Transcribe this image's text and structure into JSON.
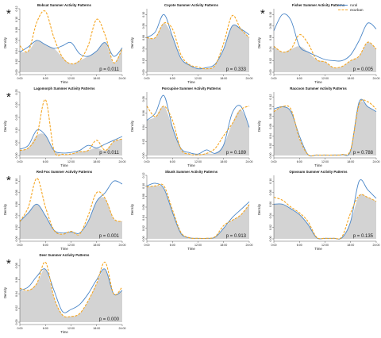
{
  "colors": {
    "rural": "#4a86c8",
    "exurban": "#f5a623",
    "fill": "#d3d3d3",
    "axis": "#333333"
  },
  "legend": {
    "items": [
      {
        "label": "rural"
      },
      {
        "label": "exurban"
      }
    ]
  },
  "chart_data": [
    {
      "type": "area",
      "title": "Bobcat Summer Activity Patterns",
      "xlabel": "Time",
      "ylabel": "Density",
      "xlim": [
        0,
        24
      ],
      "xticks": [
        "0:00",
        "6:00",
        "12:00",
        "18:00",
        "24:00"
      ],
      "yticks": [
        0,
        0.02,
        0.04,
        0.06,
        0.08,
        0.1,
        0.12
      ],
      "ylim": [
        0,
        0.12
      ],
      "p_value": "p = 0.011",
      "significant": true,
      "x": [
        0,
        2,
        4,
        6,
        8,
        10,
        12,
        14,
        16,
        18,
        20,
        22,
        24
      ],
      "series": [
        {
          "name": "rural",
          "values": [
            0.038,
            0.048,
            0.06,
            0.052,
            0.045,
            0.05,
            0.056,
            0.035,
            0.03,
            0.04,
            0.056,
            0.03,
            0.046
          ]
        },
        {
          "name": "exurban",
          "values": [
            0.05,
            0.04,
            0.095,
            0.115,
            0.065,
            0.028,
            0.016,
            0.022,
            0.05,
            0.1,
            0.07,
            0.018,
            0.045
          ]
        }
      ]
    },
    {
      "type": "area",
      "title": "Coyote Summer Activity Patterns",
      "xlabel": "Time",
      "ylabel": "Density",
      "xlim": [
        0,
        24
      ],
      "xticks": [
        "0:00",
        "6:00",
        "12:00",
        "18:00",
        "24:00"
      ],
      "yticks": [
        0,
        0.02,
        0.04,
        0.06,
        0.08,
        0.1
      ],
      "ylim": [
        0,
        0.11
      ],
      "p_value": "p = 0.333",
      "significant": false,
      "x": [
        0,
        2,
        4,
        6,
        8,
        10,
        12,
        14,
        16,
        18,
        20,
        22,
        24
      ],
      "series": [
        {
          "name": "rural",
          "values": [
            0.06,
            0.07,
            0.1,
            0.062,
            0.024,
            0.012,
            0.006,
            0.008,
            0.014,
            0.04,
            0.08,
            0.075,
            0.065
          ]
        },
        {
          "name": "exurban",
          "values": [
            0.06,
            0.06,
            0.085,
            0.075,
            0.03,
            0.013,
            0.009,
            0.006,
            0.012,
            0.05,
            0.098,
            0.075,
            0.06
          ]
        }
      ]
    },
    {
      "type": "area",
      "title": "Fisher Summer Activity Patterns",
      "xlabel": "Time",
      "ylabel": "Density",
      "xlim": [
        0,
        24
      ],
      "xticks": [
        "0:00",
        "6:00",
        "12:00",
        "18:00",
        "24:00"
      ],
      "yticks": [
        0,
        0.02,
        0.04,
        0.06,
        0.08,
        0.1
      ],
      "ylim": [
        0,
        0.11
      ],
      "p_value": "p = 0.005",
      "significant": true,
      "x": [
        0,
        2,
        4,
        6,
        8,
        10,
        12,
        14,
        16,
        18,
        20,
        22,
        24
      ],
      "series": [
        {
          "name": "rural",
          "values": [
            0.072,
            0.1,
            0.09,
            0.045,
            0.035,
            0.028,
            0.022,
            0.02,
            0.02,
            0.03,
            0.055,
            0.085,
            0.075
          ]
        },
        {
          "name": "exurban",
          "values": [
            0.045,
            0.035,
            0.04,
            0.065,
            0.05,
            0.022,
            0.018,
            0.008,
            0.01,
            0.02,
            0.028,
            0.052,
            0.04
          ]
        }
      ]
    },
    {
      "type": "area",
      "title": "Lagomorph Summer Activity Patterns",
      "xlabel": "Time",
      "ylabel": "Density",
      "xlim": [
        0,
        24
      ],
      "xticks": [
        "0:00",
        "6:00",
        "12:00",
        "18:00",
        "24:00"
      ],
      "yticks": [
        0,
        0.05,
        0.1,
        0.15,
        0.2,
        0.25
      ],
      "ylim": [
        0,
        0.25
      ],
      "p_value": "p = 0.011",
      "significant": true,
      "x": [
        0,
        2,
        4,
        6,
        8,
        10,
        12,
        14,
        16,
        18,
        20,
        22,
        24
      ],
      "series": [
        {
          "name": "rural",
          "values": [
            0.025,
            0.04,
            0.1,
            0.08,
            0.02,
            0.01,
            0.012,
            0.02,
            0.04,
            0.03,
            0.045,
            0.06,
            0.075
          ]
        },
        {
          "name": "exurban",
          "values": [
            0.02,
            0.03,
            0.08,
            0.22,
            0.02,
            0.005,
            0.006,
            0.015,
            0.02,
            0.06,
            0.02,
            0.055,
            0.065
          ]
        }
      ]
    },
    {
      "type": "area",
      "title": "Porcupine Summer Activity Patterns",
      "xlabel": "Time",
      "ylabel": "Density",
      "xlim": [
        0,
        24
      ],
      "xticks": [
        "0:00",
        "6:00",
        "12:00",
        "18:00",
        "24:00"
      ],
      "yticks": [
        0,
        0.02,
        0.04,
        0.06,
        0.08
      ],
      "ylim": [
        0,
        0.09
      ],
      "p_value": "p = 0.189",
      "significant": false,
      "x": [
        0,
        2,
        4,
        6,
        8,
        10,
        12,
        14,
        16,
        18,
        20,
        22,
        24
      ],
      "series": [
        {
          "name": "rural",
          "values": [
            0.05,
            0.06,
            0.085,
            0.04,
            0.01,
            0.004,
            0.002,
            0.008,
            0.003,
            0.015,
            0.06,
            0.07,
            0.04
          ]
        },
        {
          "name": "exurban",
          "values": [
            0.07,
            0.055,
            0.07,
            0.05,
            0.009,
            0.002,
            0.001,
            0.003,
            0.01,
            0.028,
            0.045,
            0.065,
            0.07
          ]
        }
      ]
    },
    {
      "type": "area",
      "title": "Raccoon Summer Activity Patterns",
      "xlabel": "Time",
      "ylabel": "Density",
      "xlim": [
        0,
        24
      ],
      "xticks": [
        "0:00",
        "6:00",
        "12:00",
        "18:00",
        "24:00"
      ],
      "yticks": [
        0,
        0.02,
        0.04,
        0.06,
        0.08,
        0.1,
        0.12
      ],
      "ylim": [
        0,
        0.13
      ],
      "p_value": "p = 0.788",
      "significant": false,
      "x": [
        0,
        2,
        4,
        6,
        8,
        10,
        12,
        14,
        16,
        18,
        20,
        22,
        24
      ],
      "series": [
        {
          "name": "rural",
          "values": [
            0.095,
            0.1,
            0.09,
            0.04,
            0.002,
            0.001,
            0.001,
            0.001,
            0.002,
            0.01,
            0.11,
            0.1,
            0.09
          ]
        },
        {
          "name": "exurban",
          "values": [
            0.09,
            0.1,
            0.095,
            0.035,
            0.002,
            0.001,
            0.001,
            0.001,
            0.002,
            0.012,
            0.105,
            0.11,
            0.095
          ]
        }
      ]
    },
    {
      "type": "area",
      "title": "Red Fox Summer Activity Patterns",
      "xlabel": "Time",
      "ylabel": "Density",
      "xlim": [
        0,
        24
      ],
      "xticks": [
        "0:00",
        "6:00",
        "12:00",
        "18:00",
        "24:00"
      ],
      "yticks": [
        0,
        0.02,
        0.04,
        0.06,
        0.08,
        0.1
      ],
      "ylim": [
        0,
        0.11
      ],
      "p_value": "p = 0.001",
      "significant": true,
      "x": [
        0,
        2,
        4,
        6,
        8,
        10,
        12,
        14,
        16,
        18,
        20,
        22,
        24
      ],
      "series": [
        {
          "name": "rural",
          "values": [
            0.03,
            0.045,
            0.06,
            0.04,
            0.015,
            0.01,
            0.012,
            0.01,
            0.03,
            0.065,
            0.08,
            0.1,
            0.095
          ]
        },
        {
          "name": "exurban",
          "values": [
            0.03,
            0.055,
            0.105,
            0.055,
            0.015,
            0.008,
            0.013,
            0.008,
            0.04,
            0.08,
            0.07,
            0.035,
            0.03
          ]
        }
      ]
    },
    {
      "type": "area",
      "title": "Skunk Summer Activity Patterns",
      "xlabel": "Time",
      "ylabel": "Density",
      "xlim": [
        0,
        24
      ],
      "xticks": [
        "0:00",
        "6:00",
        "12:00",
        "18:00",
        "24:00"
      ],
      "yticks": [
        0,
        0.02,
        0.04,
        0.06,
        0.08,
        0.1,
        0.12
      ],
      "ylim": [
        0,
        0.12
      ],
      "p_value": "p = 0.913",
      "significant": false,
      "x": [
        0,
        2,
        4,
        6,
        8,
        10,
        12,
        14,
        16,
        18,
        20,
        22,
        24
      ],
      "series": [
        {
          "name": "rural",
          "values": [
            0.1,
            0.105,
            0.095,
            0.05,
            0.01,
            0.002,
            0.001,
            0.001,
            0.003,
            0.02,
            0.04,
            0.055,
            0.07
          ]
        },
        {
          "name": "exurban",
          "values": [
            0.098,
            0.1,
            0.1,
            0.055,
            0.012,
            0.002,
            0.001,
            0.001,
            0.004,
            0.025,
            0.035,
            0.045,
            0.065
          ]
        }
      ]
    },
    {
      "type": "area",
      "title": "Opossum Summer Activity Patterns",
      "xlabel": "Time",
      "ylabel": "Density",
      "xlim": [
        0,
        24
      ],
      "xticks": [
        "0:00",
        "6:00",
        "12:00",
        "18:00",
        "24:00"
      ],
      "yticks": [
        0,
        0.02,
        0.04,
        0.06,
        0.08,
        0.1
      ],
      "ylim": [
        0,
        0.11
      ],
      "p_value": "p = 0.135",
      "significant": false,
      "x": [
        0,
        2,
        4,
        6,
        8,
        10,
        12,
        14,
        16,
        18,
        20,
        22,
        24
      ],
      "series": [
        {
          "name": "rural",
          "values": [
            0.06,
            0.06,
            0.052,
            0.042,
            0.025,
            0.002,
            0.001,
            0.001,
            0.002,
            0.03,
            0.1,
            0.085,
            0.07
          ]
        },
        {
          "name": "exurban",
          "values": [
            0.072,
            0.067,
            0.055,
            0.045,
            0.03,
            0.003,
            0.001,
            0.001,
            0.004,
            0.045,
            0.075,
            0.072,
            0.065
          ]
        }
      ]
    },
    {
      "type": "area",
      "title": "Deer Summer Activity Patterns",
      "xlabel": "Time",
      "ylabel": "Density",
      "xlim": [
        0,
        24
      ],
      "xticks": [
        "0:00",
        "6:00",
        "12:00",
        "18:00",
        "24:00"
      ],
      "yticks": [
        0,
        0.02,
        0.04,
        0.06,
        0.08
      ],
      "ylim": [
        0,
        0.09
      ],
      "p_value": "p = 0.000",
      "significant": true,
      "x": [
        0,
        2,
        4,
        6,
        8,
        10,
        12,
        14,
        16,
        18,
        20,
        22,
        24
      ],
      "series": [
        {
          "name": "rural",
          "values": [
            0.045,
            0.05,
            0.065,
            0.075,
            0.045,
            0.015,
            0.018,
            0.025,
            0.04,
            0.06,
            0.075,
            0.04,
            0.045
          ]
        },
        {
          "name": "exurban",
          "values": [
            0.048,
            0.045,
            0.055,
            0.085,
            0.035,
            0.01,
            0.008,
            0.012,
            0.03,
            0.055,
            0.085,
            0.04,
            0.05
          ]
        }
      ]
    }
  ]
}
